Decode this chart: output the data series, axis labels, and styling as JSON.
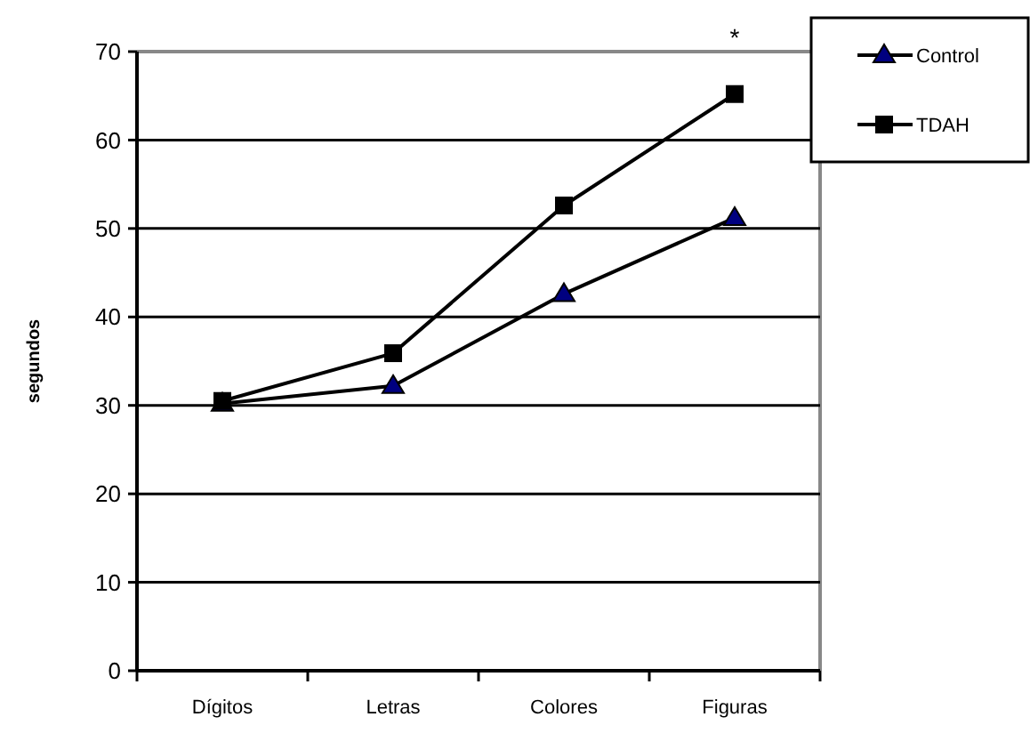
{
  "chart_data": {
    "type": "line",
    "ylabel": "segundos",
    "categories": [
      "Dígitos",
      "Letras",
      "Colores",
      "Figuras"
    ],
    "series": [
      {
        "name": "Control",
        "color": "#000000",
        "marker": "triangle",
        "values": [
          30.2,
          32.2,
          42.6,
          51.2
        ]
      },
      {
        "name": "TDAH",
        "color": "#000000",
        "marker": "square",
        "values": [
          30.5,
          35.9,
          52.6,
          65.2
        ]
      }
    ],
    "ylim": [
      0,
      70
    ],
    "yticks": [
      0,
      10,
      20,
      30,
      40,
      50,
      60,
      70
    ],
    "grid": "y",
    "legend": "top right",
    "annotations": [
      "*"
    ]
  }
}
